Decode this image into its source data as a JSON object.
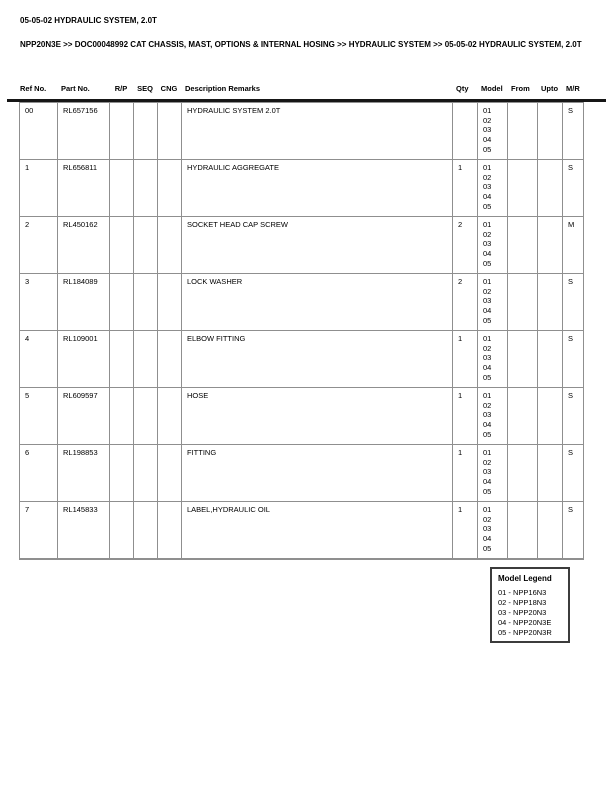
{
  "page": {
    "title": "05-05-02 HYDRAULIC SYSTEM, 2.0T",
    "breadcrumb": "NPP20N3E >> DOC00048992 CAT CHASSIS, MAST, OPTIONS & INTERNAL HOSING >> HYDRAULIC SYSTEM >> 05-05-02 HYDRAULIC SYSTEM, 2.0T"
  },
  "table": {
    "columns": [
      "Ref No.",
      "Part No.",
      "R/P",
      "SEQ",
      "CNG",
      "Description Remarks",
      "Qty",
      "Model",
      "From",
      "Upto",
      "M/R"
    ],
    "rows": [
      {
        "ref_no": "00",
        "part_no": "RL657156",
        "rp": "",
        "seq": "",
        "cng": "",
        "description": "HYDRAULIC SYSTEM 2.0T",
        "qty": "",
        "models": [
          "01",
          "02",
          "03",
          "04",
          "05"
        ],
        "from": "",
        "upto": "",
        "mr": "S"
      },
      {
        "ref_no": "1",
        "part_no": "RL656811",
        "rp": "",
        "seq": "",
        "cng": "",
        "description": "HYDRAULIC AGGREGATE",
        "qty": "1",
        "models": [
          "01",
          "02",
          "03",
          "04",
          "05"
        ],
        "from": "",
        "upto": "",
        "mr": "S"
      },
      {
        "ref_no": "2",
        "part_no": "RL450162",
        "rp": "",
        "seq": "",
        "cng": "",
        "description": "SOCKET HEAD CAP SCREW",
        "qty": "2",
        "models": [
          "01",
          "02",
          "03",
          "04",
          "05"
        ],
        "from": "",
        "upto": "",
        "mr": "M"
      },
      {
        "ref_no": "3",
        "part_no": "RL184089",
        "rp": "",
        "seq": "",
        "cng": "",
        "description": "LOCK WASHER",
        "qty": "2",
        "models": [
          "01",
          "02",
          "03",
          "04",
          "05"
        ],
        "from": "",
        "upto": "",
        "mr": "S"
      },
      {
        "ref_no": "4",
        "part_no": "RL109001",
        "rp": "",
        "seq": "",
        "cng": "",
        "description": "ELBOW FITTING",
        "qty": "1",
        "models": [
          "01",
          "02",
          "03",
          "04",
          "05"
        ],
        "from": "",
        "upto": "",
        "mr": "S"
      },
      {
        "ref_no": "5",
        "part_no": "RL609597",
        "rp": "",
        "seq": "",
        "cng": "",
        "description": "HOSE",
        "qty": "1",
        "models": [
          "01",
          "02",
          "03",
          "04",
          "05"
        ],
        "from": "",
        "upto": "",
        "mr": "S"
      },
      {
        "ref_no": "6",
        "part_no": "RL198853",
        "rp": "",
        "seq": "",
        "cng": "",
        "description": "FITTING",
        "qty": "1",
        "models": [
          "01",
          "02",
          "03",
          "04",
          "05"
        ],
        "from": "",
        "upto": "",
        "mr": "S"
      },
      {
        "ref_no": "7",
        "part_no": "RL145833",
        "rp": "",
        "seq": "",
        "cng": "",
        "description": "LABEL,HYDRAULIC OIL",
        "qty": "1",
        "models": [
          "01",
          "02",
          "03",
          "04",
          "05"
        ],
        "from": "",
        "upto": "",
        "mr": "S"
      }
    ]
  },
  "model_legend": {
    "title": "Model Legend",
    "items": [
      "01 - NPP16N3",
      "02 - NPP18N3",
      "03 - NPP20N3",
      "04 - NPP20N3E",
      "05 - NPP20N3R"
    ]
  },
  "colors": {
    "table_border": "#8f8f8f",
    "header_rule": "#161616",
    "text": "#000000",
    "page_background": "#ffffff",
    "legend_border": "#3c3c3c"
  }
}
